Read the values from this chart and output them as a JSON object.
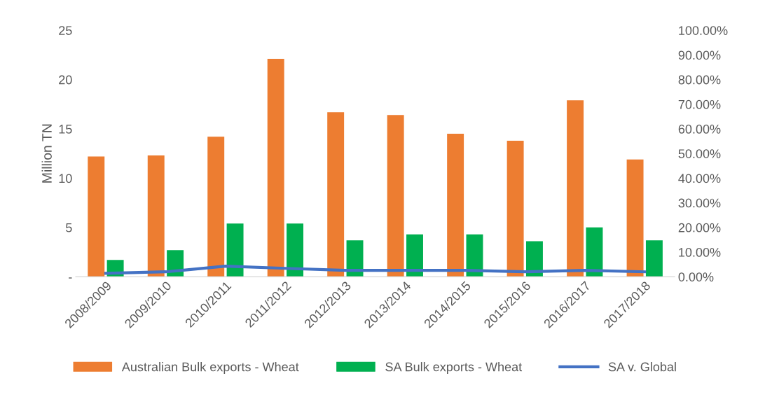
{
  "chart_data": {
    "type": "bar",
    "ylabel": "Million TN",
    "categories": [
      "2008/2009",
      "2009/2010",
      "2010/2011",
      "2011/2012",
      "2012/2013",
      "2013/2014",
      "2014/2015",
      "2015/2016",
      "2016/2017",
      "2017/2018"
    ],
    "series": [
      {
        "name": "Australian Bulk exports - Wheat",
        "color": "#ed7d31",
        "values": [
          12.2,
          12.3,
          14.2,
          22.1,
          16.7,
          16.4,
          14.5,
          13.8,
          17.9,
          11.9
        ]
      },
      {
        "name": "SA Bulk exports - Wheat",
        "color": "#00b050",
        "values": [
          1.7,
          2.7,
          5.4,
          5.4,
          3.7,
          4.3,
          4.3,
          3.6,
          5.0,
          3.7
        ]
      },
      {
        "name": "SA v. Global",
        "type": "line",
        "axis": "y2",
        "color": "#4472c4",
        "values": [
          1.4,
          2.0,
          4.3,
          3.4,
          2.6,
          2.6,
          2.6,
          2.0,
          2.6,
          2.0
        ]
      }
    ],
    "ylim": [
      0,
      25
    ],
    "yticks": [
      {
        "value": 0,
        "label": "-"
      },
      5,
      10,
      15,
      20,
      25
    ],
    "y2lim": [
      0,
      100
    ],
    "y2ticks": [
      {
        "value": 0,
        "label": "0.00%"
      },
      {
        "value": 10,
        "label": "10.00%"
      },
      {
        "value": 20,
        "label": "20.00%"
      },
      {
        "value": 30,
        "label": "30.00%"
      },
      {
        "value": 40,
        "label": "40.00%"
      },
      {
        "value": 50,
        "label": "50.00%"
      },
      {
        "value": 60,
        "label": "60.00%"
      },
      {
        "value": 70,
        "label": "70.00%"
      },
      {
        "value": 80,
        "label": "80.00%"
      },
      {
        "value": 90,
        "label": "90.00%"
      },
      {
        "value": 100,
        "label": "100.00%"
      }
    ],
    "legend": "bottom",
    "grid": false
  }
}
